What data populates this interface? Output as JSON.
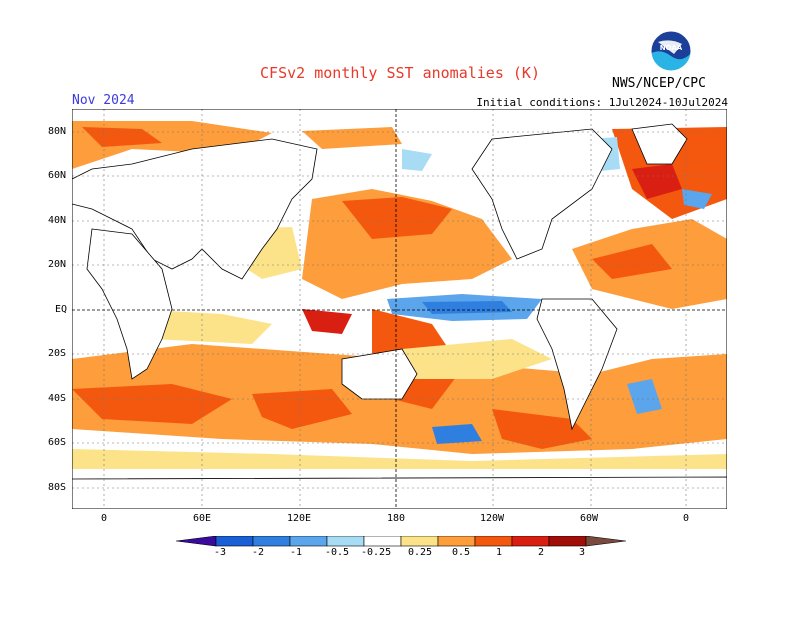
{
  "header": {
    "title": "CFSv2 monthly SST anomalies (K)",
    "month": "Nov 2024",
    "initial_conditions": "Initial conditions: 1Jul2024-10Jul2024",
    "agency": "NWS/NCEP/CPC",
    "logo_text": "NOAA"
  },
  "map": {
    "lat_labels": [
      "80N",
      "60N",
      "40N",
      "20N",
      "EQ",
      "20S",
      "40S",
      "60S",
      "80S"
    ],
    "lon_labels": [
      "0",
      "60E",
      "120E",
      "180",
      "120W",
      "60W",
      "0"
    ]
  },
  "legend": {
    "ticks": [
      "-3",
      "-2",
      "-1",
      "-0.5",
      "-0.25",
      "0.25",
      "0.5",
      "1",
      "2",
      "3"
    ],
    "colors": [
      "#3a0b9f",
      "#1a5fd6",
      "#2f7fe0",
      "#5aa5ec",
      "#a8dcf5",
      "#ffffff",
      "#fce38a",
      "#fd9d3b",
      "#f4580f",
      "#d91f12",
      "#a10e08",
      "#7a4a3e"
    ]
  }
}
